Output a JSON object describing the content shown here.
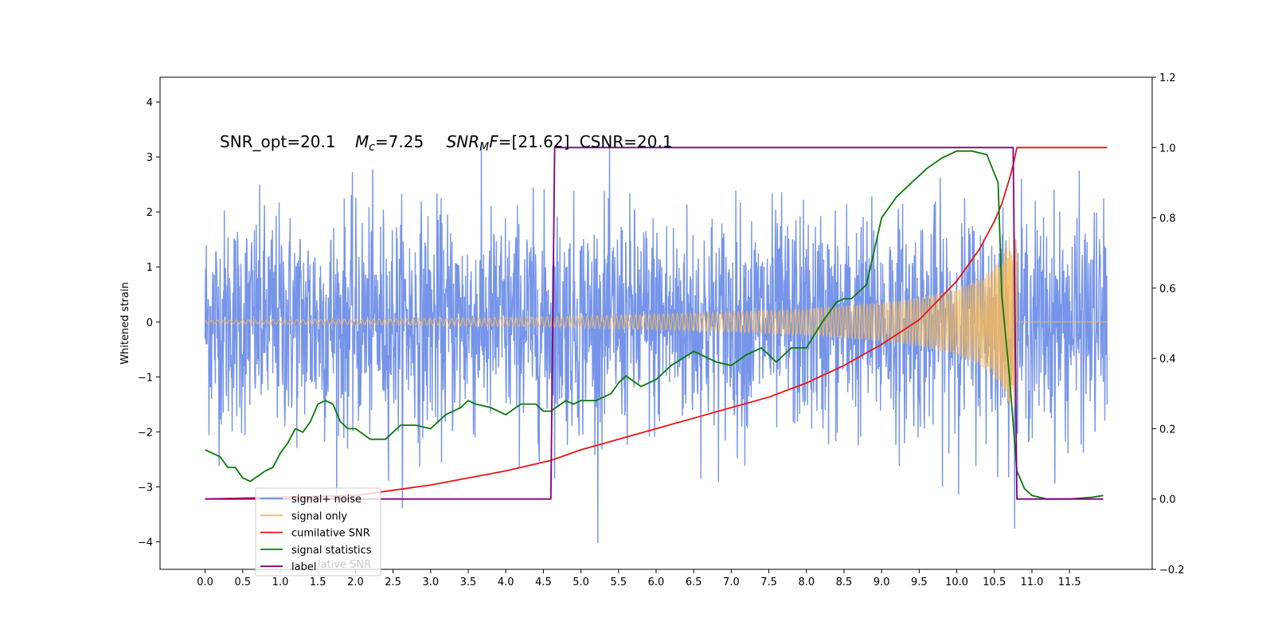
{
  "chart_data": {
    "type": "line",
    "annotation_parts": {
      "snr_opt": "SNR_opt=20.1",
      "mc_symbol": "M",
      "mc_sub": "c",
      "mc_value": "=7.25",
      "snrmf_symbol": "SNR",
      "snrmf_sub": "M",
      "snrmf_f": "F",
      "snrmf_value": "=[21.62]",
      "csnr": "CSNR=20.1"
    },
    "ylabel_left": "Whitened strain",
    "x_ticks": [
      "0.0",
      "0.5",
      "1.0",
      "1.5",
      "2.0",
      "2.5",
      "3.0",
      "3.5",
      "4.0",
      "4.5",
      "5.0",
      "5.5",
      "6.0",
      "6.5",
      "7.0",
      "7.5",
      "8.0",
      "8.5",
      "9.0",
      "9.5",
      "10.0",
      "10.5",
      "11.0",
      "11.5"
    ],
    "xlim": [
      -0.6,
      12.6
    ],
    "y_left_ticks": [
      "−4",
      "−3",
      "−2",
      "−1",
      "0",
      "1",
      "2",
      "3",
      "4"
    ],
    "ylim_left": [
      -4.5,
      4.45
    ],
    "y_right_ticks": [
      "−0.2",
      "0.0",
      "0.2",
      "0.4",
      "0.6",
      "0.8",
      "1.0",
      "1.2"
    ],
    "ylim_right": [
      -0.2,
      1.2
    ],
    "colors": {
      "noise": "#6f8ee8",
      "signal": "#f5b85a",
      "cumulative": "#ee1111",
      "statistics": "#0a7a0a",
      "label": "#800080"
    },
    "series": [
      {
        "name": "signal+ noise",
        "axis": "left",
        "description_note": "broadband noise, |y| up to ~4",
        "x_range": [
          0.0,
          12.0
        ],
        "amplitude_std": 1.0,
        "max_abs": 4.1
      },
      {
        "name": "signal only",
        "axis": "left",
        "x_range": [
          0.0,
          12.0
        ],
        "chirp_start": 0.0,
        "chirp_end": 10.8,
        "envelope": {
          "x": [
            0.0,
            2.0,
            4.0,
            5.0,
            6.0,
            7.0,
            8.0,
            9.0,
            9.5,
            10.0,
            10.3,
            10.5,
            10.6,
            10.7,
            10.8
          ],
          "y": [
            0.03,
            0.05,
            0.08,
            0.11,
            0.14,
            0.18,
            0.24,
            0.35,
            0.44,
            0.6,
            0.78,
            1.0,
            1.2,
            1.55,
            1.6
          ]
        }
      },
      {
        "name": "cumilative SNR",
        "axis": "right",
        "x": [
          0.0,
          2.0,
          3.0,
          4.0,
          4.6,
          5.0,
          6.0,
          7.0,
          7.5,
          8.0,
          8.5,
          9.0,
          9.5,
          10.0,
          10.3,
          10.5,
          10.6,
          10.7,
          10.75,
          10.8,
          11.0,
          11.5,
          12.0
        ],
        "y": [
          0.0,
          0.01,
          0.04,
          0.08,
          0.11,
          0.14,
          0.2,
          0.26,
          0.29,
          0.33,
          0.38,
          0.44,
          0.51,
          0.62,
          0.71,
          0.79,
          0.84,
          0.91,
          0.95,
          1.0,
          1.0,
          1.0,
          1.0
        ]
      },
      {
        "name": "signal statistics",
        "axis": "right",
        "x": [
          0.0,
          0.2,
          0.3,
          0.4,
          0.5,
          0.6,
          0.8,
          0.9,
          1.0,
          1.1,
          1.2,
          1.3,
          1.4,
          1.5,
          1.6,
          1.7,
          1.8,
          1.9,
          2.0,
          2.2,
          2.4,
          2.5,
          2.6,
          2.8,
          3.0,
          3.2,
          3.3,
          3.4,
          3.5,
          3.6,
          3.8,
          4.0,
          4.2,
          4.4,
          4.5,
          4.6,
          4.8,
          4.9,
          5.0,
          5.2,
          5.4,
          5.5,
          5.6,
          5.8,
          6.0,
          6.2,
          6.5,
          6.8,
          7.0,
          7.2,
          7.4,
          7.6,
          7.8,
          8.0,
          8.2,
          8.4,
          8.5,
          8.6,
          8.8,
          9.0,
          9.2,
          9.4,
          9.6,
          9.8,
          10.0,
          10.2,
          10.4,
          10.55,
          10.6,
          10.7,
          10.8,
          10.9,
          11.0,
          11.2,
          11.5,
          11.8,
          11.95
        ],
        "y": [
          0.14,
          0.12,
          0.09,
          0.09,
          0.06,
          0.05,
          0.08,
          0.09,
          0.13,
          0.16,
          0.2,
          0.19,
          0.22,
          0.27,
          0.28,
          0.27,
          0.22,
          0.2,
          0.2,
          0.17,
          0.17,
          0.19,
          0.21,
          0.21,
          0.2,
          0.24,
          0.25,
          0.26,
          0.28,
          0.27,
          0.26,
          0.24,
          0.27,
          0.27,
          0.25,
          0.25,
          0.28,
          0.27,
          0.28,
          0.28,
          0.3,
          0.33,
          0.35,
          0.32,
          0.34,
          0.38,
          0.42,
          0.39,
          0.38,
          0.41,
          0.43,
          0.39,
          0.43,
          0.43,
          0.5,
          0.56,
          0.57,
          0.57,
          0.61,
          0.8,
          0.86,
          0.9,
          0.94,
          0.97,
          0.99,
          0.99,
          0.98,
          0.9,
          0.58,
          0.35,
          0.08,
          0.03,
          0.01,
          0.0,
          0.0,
          0.005,
          0.01
        ]
      },
      {
        "name": "label",
        "axis": "right",
        "x": [
          0.0,
          4.6,
          4.65,
          10.75,
          10.8,
          11.95
        ],
        "y": [
          0.0,
          0.0,
          1.0,
          1.0,
          0.0,
          0.0
        ]
      }
    ],
    "legend": {
      "placement": "lower-left",
      "entries": [
        "signal+ noise",
        "signal only",
        "cumilative SNR",
        "signal statistics",
        "label"
      ],
      "ghost_text": "lative SNR"
    }
  }
}
